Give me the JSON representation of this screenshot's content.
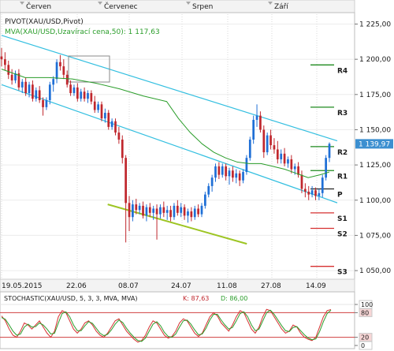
{
  "header": {
    "months": [
      "Červen",
      "Červenec",
      "Srpen",
      "Září"
    ],
    "indicator_label": "PIVOT(XAU/USD,Pivot)",
    "mva_label": "MVA(XAU/USD,Uzavírací cena,50): 1 117,63",
    "stochastic_label": "STOCHASTIC(XAU/USD, 5, 3, 3, MVA, MVA)",
    "stochastic_k": "K: 87,63",
    "stochastic_d": "D: 86,00"
  },
  "colors": {
    "bull": "#1f6fd6",
    "bear": "#c0272d",
    "mva": "#2a9d2a",
    "channel": "#33bfe0",
    "support_trend": "#9dc523",
    "pivot_resistance": "#1e8a1e",
    "pivot_support": "#d63030",
    "pivot_point": "#222222",
    "price_badge": "#3c8fd0"
  },
  "chart_data": [
    {
      "type": "candlestick",
      "title": "",
      "x_ticks": [
        "19.05.2015",
        "22.06",
        "08.07",
        "24.07",
        "11.08",
        "27.08",
        "14.09"
      ],
      "y_ticks": [
        "1 225,00",
        "1 200,00",
        "1 175,00",
        "1 150,00",
        "1 125,00",
        "1 100,00",
        "1 075,00",
        "1 050,00"
      ],
      "ylim": [
        1045,
        1232
      ],
      "last_price": "1 139,97",
      "pivot_levels": [
        {
          "name": "R4",
          "value": 1196
        },
        {
          "name": "R3",
          "value": 1166
        },
        {
          "name": "R2",
          "value": 1138
        },
        {
          "name": "R1",
          "value": 1121
        },
        {
          "name": "P",
          "value": 1108
        },
        {
          "name": "S1",
          "value": 1091
        },
        {
          "name": "S2",
          "value": 1080
        },
        {
          "name": "S3",
          "value": 1053
        }
      ],
      "channel_upper": [
        {
          "x": 0,
          "y": 1217
        },
        {
          "x": 139,
          "y": 1141
        }
      ],
      "channel_lower": [
        {
          "x": 0,
          "y": 1182
        },
        {
          "x": 139,
          "y": 1097
        }
      ],
      "support_trendline": [
        {
          "x": 45,
          "y": 1097
        },
        {
          "x": 104,
          "y": 1069
        }
      ],
      "mva_series": [
        {
          "x": 0,
          "y": 1193
        },
        {
          "x": 10,
          "y": 1187
        },
        {
          "x": 20,
          "y": 1187
        },
        {
          "x": 30,
          "y": 1186
        },
        {
          "x": 40,
          "y": 1183
        },
        {
          "x": 50,
          "y": 1179
        },
        {
          "x": 60,
          "y": 1174
        },
        {
          "x": 70,
          "y": 1170
        },
        {
          "x": 75,
          "y": 1158
        },
        {
          "x": 80,
          "y": 1148
        },
        {
          "x": 85,
          "y": 1140
        },
        {
          "x": 90,
          "y": 1134
        },
        {
          "x": 95,
          "y": 1130
        },
        {
          "x": 100,
          "y": 1127
        },
        {
          "x": 105,
          "y": 1126
        },
        {
          "x": 110,
          "y": 1126
        },
        {
          "x": 115,
          "y": 1124
        },
        {
          "x": 120,
          "y": 1122
        },
        {
          "x": 125,
          "y": 1119
        },
        {
          "x": 130,
          "y": 1116
        },
        {
          "x": 135,
          "y": 1118
        },
        {
          "x": 139,
          "y": 1120
        }
      ],
      "candles": [
        {
          "o": 1202,
          "h": 1208,
          "l": 1195,
          "c": 1200
        },
        {
          "o": 1200,
          "h": 1205,
          "l": 1192,
          "c": 1196
        },
        {
          "o": 1196,
          "h": 1199,
          "l": 1186,
          "c": 1189
        },
        {
          "o": 1189,
          "h": 1193,
          "l": 1182,
          "c": 1185
        },
        {
          "o": 1185,
          "h": 1192,
          "l": 1183,
          "c": 1190
        },
        {
          "o": 1190,
          "h": 1193,
          "l": 1178,
          "c": 1180
        },
        {
          "o": 1180,
          "h": 1186,
          "l": 1176,
          "c": 1184
        },
        {
          "o": 1184,
          "h": 1187,
          "l": 1174,
          "c": 1176
        },
        {
          "o": 1176,
          "h": 1184,
          "l": 1173,
          "c": 1182
        },
        {
          "o": 1182,
          "h": 1185,
          "l": 1170,
          "c": 1172
        },
        {
          "o": 1172,
          "h": 1180,
          "l": 1170,
          "c": 1178
        },
        {
          "o": 1178,
          "h": 1181,
          "l": 1169,
          "c": 1171
        },
        {
          "o": 1171,
          "h": 1173,
          "l": 1160,
          "c": 1166
        },
        {
          "o": 1166,
          "h": 1173,
          "l": 1164,
          "c": 1171
        },
        {
          "o": 1171,
          "h": 1184,
          "l": 1168,
          "c": 1182
        },
        {
          "o": 1182,
          "h": 1188,
          "l": 1177,
          "c": 1186
        },
        {
          "o": 1186,
          "h": 1200,
          "l": 1183,
          "c": 1198
        },
        {
          "o": 1198,
          "h": 1203,
          "l": 1192,
          "c": 1195
        },
        {
          "o": 1195,
          "h": 1200,
          "l": 1186,
          "c": 1189
        },
        {
          "o": 1189,
          "h": 1192,
          "l": 1180,
          "c": 1182
        },
        {
          "o": 1182,
          "h": 1185,
          "l": 1174,
          "c": 1176
        },
        {
          "o": 1176,
          "h": 1182,
          "l": 1174,
          "c": 1180
        },
        {
          "o": 1180,
          "h": 1183,
          "l": 1170,
          "c": 1172
        },
        {
          "o": 1172,
          "h": 1179,
          "l": 1170,
          "c": 1177
        },
        {
          "o": 1177,
          "h": 1180,
          "l": 1170,
          "c": 1172
        },
        {
          "o": 1172,
          "h": 1178,
          "l": 1169,
          "c": 1176
        },
        {
          "o": 1176,
          "h": 1178,
          "l": 1168,
          "c": 1170
        },
        {
          "o": 1170,
          "h": 1174,
          "l": 1162,
          "c": 1164
        },
        {
          "o": 1164,
          "h": 1170,
          "l": 1162,
          "c": 1168
        },
        {
          "o": 1168,
          "h": 1170,
          "l": 1156,
          "c": 1158
        },
        {
          "o": 1158,
          "h": 1165,
          "l": 1155,
          "c": 1162
        },
        {
          "o": 1162,
          "h": 1164,
          "l": 1150,
          "c": 1152
        },
        {
          "o": 1152,
          "h": 1158,
          "l": 1150,
          "c": 1156
        },
        {
          "o": 1156,
          "h": 1158,
          "l": 1146,
          "c": 1148
        },
        {
          "o": 1148,
          "h": 1152,
          "l": 1140,
          "c": 1143
        },
        {
          "o": 1143,
          "h": 1146,
          "l": 1126,
          "c": 1130
        },
        {
          "o": 1130,
          "h": 1132,
          "l": 1070,
          "c": 1098
        },
        {
          "o": 1098,
          "h": 1103,
          "l": 1078,
          "c": 1088
        },
        {
          "o": 1088,
          "h": 1100,
          "l": 1085,
          "c": 1097
        },
        {
          "o": 1097,
          "h": 1101,
          "l": 1090,
          "c": 1093
        },
        {
          "o": 1093,
          "h": 1098,
          "l": 1090,
          "c": 1096
        },
        {
          "o": 1096,
          "h": 1099,
          "l": 1087,
          "c": 1089
        },
        {
          "o": 1089,
          "h": 1097,
          "l": 1085,
          "c": 1095
        },
        {
          "o": 1095,
          "h": 1098,
          "l": 1088,
          "c": 1091
        },
        {
          "o": 1091,
          "h": 1096,
          "l": 1086,
          "c": 1094
        },
        {
          "o": 1094,
          "h": 1097,
          "l": 1072,
          "c": 1090
        },
        {
          "o": 1090,
          "h": 1097,
          "l": 1087,
          "c": 1095
        },
        {
          "o": 1095,
          "h": 1099,
          "l": 1088,
          "c": 1091
        },
        {
          "o": 1091,
          "h": 1096,
          "l": 1086,
          "c": 1093
        },
        {
          "o": 1093,
          "h": 1096,
          "l": 1085,
          "c": 1088
        },
        {
          "o": 1088,
          "h": 1098,
          "l": 1086,
          "c": 1096
        },
        {
          "o": 1096,
          "h": 1100,
          "l": 1089,
          "c": 1091
        },
        {
          "o": 1091,
          "h": 1098,
          "l": 1088,
          "c": 1095
        },
        {
          "o": 1095,
          "h": 1097,
          "l": 1086,
          "c": 1089
        },
        {
          "o": 1089,
          "h": 1094,
          "l": 1084,
          "c": 1092
        },
        {
          "o": 1092,
          "h": 1095,
          "l": 1085,
          "c": 1088
        },
        {
          "o": 1088,
          "h": 1096,
          "l": 1086,
          "c": 1094
        },
        {
          "o": 1094,
          "h": 1097,
          "l": 1088,
          "c": 1090
        },
        {
          "o": 1090,
          "h": 1098,
          "l": 1088,
          "c": 1096
        },
        {
          "o": 1096,
          "h": 1106,
          "l": 1094,
          "c": 1104
        },
        {
          "o": 1104,
          "h": 1112,
          "l": 1102,
          "c": 1110
        },
        {
          "o": 1110,
          "h": 1118,
          "l": 1106,
          "c": 1116
        },
        {
          "o": 1116,
          "h": 1126,
          "l": 1113,
          "c": 1124
        },
        {
          "o": 1124,
          "h": 1127,
          "l": 1115,
          "c": 1118
        },
        {
          "o": 1118,
          "h": 1126,
          "l": 1116,
          "c": 1124
        },
        {
          "o": 1124,
          "h": 1126,
          "l": 1114,
          "c": 1117
        },
        {
          "o": 1117,
          "h": 1123,
          "l": 1111,
          "c": 1121
        },
        {
          "o": 1121,
          "h": 1124,
          "l": 1113,
          "c": 1116
        },
        {
          "o": 1116,
          "h": 1122,
          "l": 1112,
          "c": 1119
        },
        {
          "o": 1119,
          "h": 1121,
          "l": 1110,
          "c": 1114
        },
        {
          "o": 1114,
          "h": 1122,
          "l": 1112,
          "c": 1120
        },
        {
          "o": 1120,
          "h": 1132,
          "l": 1118,
          "c": 1130
        },
        {
          "o": 1130,
          "h": 1145,
          "l": 1128,
          "c": 1143
        },
        {
          "o": 1143,
          "h": 1160,
          "l": 1140,
          "c": 1157
        },
        {
          "o": 1157,
          "h": 1168,
          "l": 1152,
          "c": 1160
        },
        {
          "o": 1160,
          "h": 1163,
          "l": 1148,
          "c": 1150
        },
        {
          "o": 1150,
          "h": 1153,
          "l": 1130,
          "c": 1134
        },
        {
          "o": 1134,
          "h": 1148,
          "l": 1132,
          "c": 1146
        },
        {
          "o": 1146,
          "h": 1150,
          "l": 1136,
          "c": 1139
        },
        {
          "o": 1139,
          "h": 1144,
          "l": 1133,
          "c": 1136
        },
        {
          "o": 1136,
          "h": 1142,
          "l": 1126,
          "c": 1129
        },
        {
          "o": 1129,
          "h": 1136,
          "l": 1126,
          "c": 1133
        },
        {
          "o": 1133,
          "h": 1137,
          "l": 1124,
          "c": 1126
        },
        {
          "o": 1126,
          "h": 1131,
          "l": 1123,
          "c": 1129
        },
        {
          "o": 1129,
          "h": 1132,
          "l": 1119,
          "c": 1122
        },
        {
          "o": 1122,
          "h": 1126,
          "l": 1118,
          "c": 1124
        },
        {
          "o": 1124,
          "h": 1127,
          "l": 1116,
          "c": 1118
        },
        {
          "o": 1118,
          "h": 1121,
          "l": 1105,
          "c": 1108
        },
        {
          "o": 1108,
          "h": 1112,
          "l": 1102,
          "c": 1106
        },
        {
          "o": 1106,
          "h": 1110,
          "l": 1100,
          "c": 1104
        },
        {
          "o": 1104,
          "h": 1110,
          "l": 1102,
          "c": 1107
        },
        {
          "o": 1107,
          "h": 1109,
          "l": 1100,
          "c": 1103
        },
        {
          "o": 1103,
          "h": 1108,
          "l": 1100,
          "c": 1105
        },
        {
          "o": 1105,
          "h": 1118,
          "l": 1102,
          "c": 1116
        },
        {
          "o": 1116,
          "h": 1132,
          "l": 1114,
          "c": 1130
        },
        {
          "o": 1130,
          "h": 1141,
          "l": 1127,
          "c": 1140
        }
      ]
    },
    {
      "type": "line",
      "title": "",
      "y_ticks": [
        "100",
        "80",
        "20",
        "0"
      ],
      "ylim": [
        0,
        100
      ],
      "reference_lines": [
        80,
        20
      ],
      "series": [
        {
          "name": "K",
          "values": [
            72,
            60,
            40,
            25,
            20,
            35,
            55,
            50,
            40,
            50,
            60,
            45,
            30,
            20,
            35,
            70,
            85,
            80,
            60,
            40,
            30,
            40,
            55,
            60,
            50,
            35,
            25,
            20,
            30,
            45,
            60,
            65,
            50,
            35,
            25,
            15,
            8,
            12,
            25,
            45,
            60,
            55,
            40,
            25,
            18,
            22,
            35,
            55,
            65,
            60,
            45,
            30,
            22,
            30,
            50,
            70,
            80,
            72,
            55,
            45,
            35,
            50,
            70,
            85,
            80,
            60,
            40,
            30,
            45,
            70,
            88,
            85,
            70,
            55,
            40,
            30,
            35,
            50,
            45,
            30,
            20,
            15,
            12,
            20,
            45,
            70,
            85,
            87.63
          ]
        },
        {
          "name": "D",
          "values": [
            68,
            64,
            50,
            35,
            25,
            28,
            45,
            52,
            45,
            46,
            55,
            50,
            40,
            28,
            30,
            55,
            78,
            82,
            70,
            50,
            36,
            36,
            48,
            58,
            54,
            42,
            30,
            24,
            27,
            38,
            52,
            62,
            56,
            42,
            30,
            20,
            12,
            10,
            18,
            35,
            52,
            58,
            48,
            32,
            22,
            20,
            28,
            45,
            60,
            62,
            52,
            38,
            26,
            28,
            42,
            62,
            76,
            76,
            62,
            50,
            40,
            44,
            60,
            78,
            82,
            70,
            50,
            36,
            40,
            60,
            80,
            86,
            76,
            62,
            48,
            36,
            34,
            44,
            46,
            36,
            26,
            18,
            14,
            16,
            34,
            58,
            78,
            86
          ]
        }
      ]
    }
  ]
}
